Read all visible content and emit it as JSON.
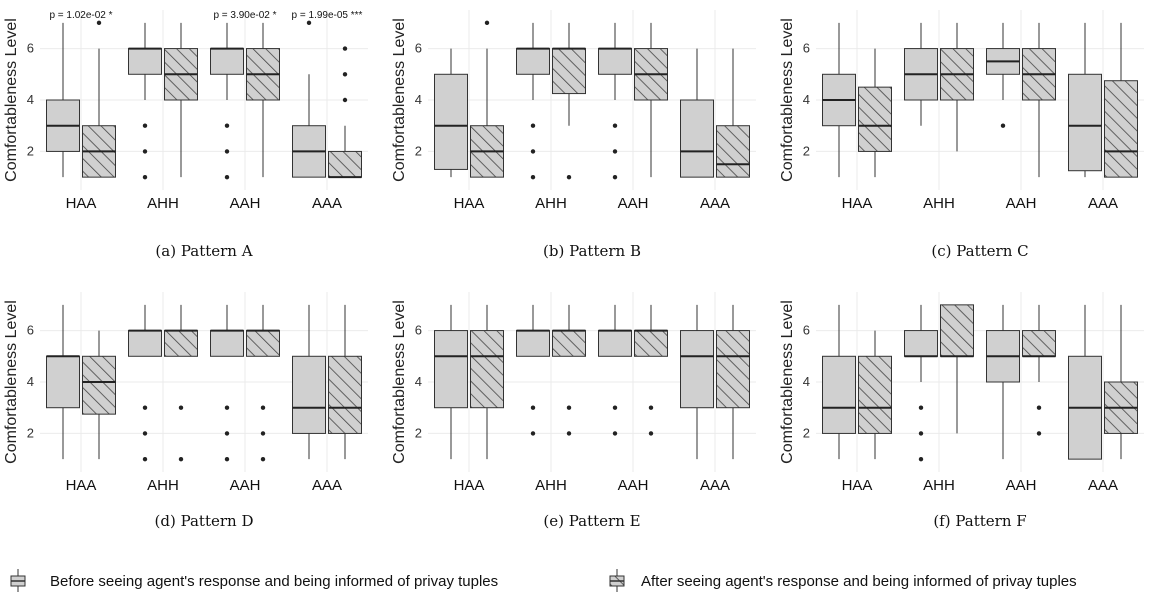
{
  "legend": {
    "before": "Before seeing agent's response and being informed of privay tuples",
    "after": "After seeing agent's response and being informed of privay tuples"
  },
  "colors": {
    "box_fill": "#d0d0d0",
    "stroke": "#333333",
    "grid": "#ebebeb",
    "hatch": "#444444"
  },
  "chart_data": [
    {
      "type": "boxplot",
      "caption": "(a) Pattern A",
      "ylabel": "Comfortableness Level",
      "categories": [
        "HAA",
        "AHH",
        "AAH",
        "AAA"
      ],
      "yticks": [
        2,
        4,
        6
      ],
      "ylim": [
        0.5,
        7.5
      ],
      "annotations": [
        {
          "category": "HAA",
          "text": "p = 1.02e-02 *"
        },
        {
          "category": "AAH",
          "text": "p = 3.90e-02 *"
        },
        {
          "category": "AAA",
          "text": "p = 1.99e-05 ***"
        }
      ],
      "series": [
        {
          "name": "Before",
          "boxes": [
            {
              "min": 1,
              "q1": 2,
              "median": 3,
              "q3": 4,
              "max": 7,
              "outliers": []
            },
            {
              "min": 4,
              "q1": 5,
              "median": 6,
              "q3": 6,
              "max": 7,
              "outliers": [
                1,
                2,
                3
              ]
            },
            {
              "min": 4,
              "q1": 5,
              "median": 6,
              "q3": 6,
              "max": 7,
              "outliers": [
                1,
                2,
                3
              ]
            },
            {
              "min": 1,
              "q1": 1,
              "median": 2,
              "q3": 3,
              "max": 5,
              "outliers": [
                7
              ]
            }
          ]
        },
        {
          "name": "After",
          "boxes": [
            {
              "min": 1,
              "q1": 1,
              "median": 2,
              "q3": 3,
              "max": 6,
              "outliers": [
                7
              ]
            },
            {
              "min": 1,
              "q1": 4,
              "median": 5,
              "q3": 6,
              "max": 7,
              "outliers": []
            },
            {
              "min": 1,
              "q1": 4,
              "median": 5,
              "q3": 6,
              "max": 7,
              "outliers": []
            },
            {
              "min": 1,
              "q1": 1,
              "median": 1,
              "q3": 2,
              "max": 3,
              "outliers": [
                4,
                5,
                6
              ]
            }
          ]
        }
      ]
    },
    {
      "type": "boxplot",
      "caption": "(b) Pattern B",
      "ylabel": "Comfortableness Level",
      "categories": [
        "HAA",
        "AHH",
        "AAH",
        "AAA"
      ],
      "yticks": [
        2,
        4,
        6
      ],
      "ylim": [
        0.5,
        7.5
      ],
      "annotations": [],
      "series": [
        {
          "name": "Before",
          "boxes": [
            {
              "min": 1,
              "q1": 1.3,
              "median": 3,
              "q3": 5,
              "max": 6,
              "outliers": []
            },
            {
              "min": 4,
              "q1": 5,
              "median": 6,
              "q3": 6,
              "max": 7,
              "outliers": [
                1,
                2,
                3
              ]
            },
            {
              "min": 4,
              "q1": 5,
              "median": 6,
              "q3": 6,
              "max": 7,
              "outliers": [
                1,
                2,
                3
              ]
            },
            {
              "min": 1,
              "q1": 1,
              "median": 2,
              "q3": 4,
              "max": 6,
              "outliers": []
            }
          ]
        },
        {
          "name": "After",
          "boxes": [
            {
              "min": 1,
              "q1": 1,
              "median": 2,
              "q3": 3,
              "max": 6,
              "outliers": [
                7
              ]
            },
            {
              "min": 3,
              "q1": 4.25,
              "median": 6,
              "q3": 6,
              "max": 7,
              "outliers": [
                1
              ]
            },
            {
              "min": 1,
              "q1": 4,
              "median": 5,
              "q3": 6,
              "max": 7,
              "outliers": []
            },
            {
              "min": 1,
              "q1": 1,
              "median": 1.5,
              "q3": 3,
              "max": 6,
              "outliers": []
            }
          ]
        }
      ]
    },
    {
      "type": "boxplot",
      "caption": "(c) Pattern C",
      "ylabel": "Comfortableness Level",
      "categories": [
        "HAA",
        "AHH",
        "AAH",
        "AAA"
      ],
      "yticks": [
        2,
        4,
        6
      ],
      "ylim": [
        0.5,
        7.5
      ],
      "annotations": [],
      "series": [
        {
          "name": "Before",
          "boxes": [
            {
              "min": 1,
              "q1": 3,
              "median": 4,
              "q3": 5,
              "max": 7,
              "outliers": []
            },
            {
              "min": 3,
              "q1": 4,
              "median": 5,
              "q3": 6,
              "max": 7,
              "outliers": []
            },
            {
              "min": 4,
              "q1": 5,
              "median": 5.5,
              "q3": 6,
              "max": 7,
              "outliers": [
                3
              ]
            },
            {
              "min": 1,
              "q1": 1.25,
              "median": 3,
              "q3": 5,
              "max": 7,
              "outliers": []
            }
          ]
        },
        {
          "name": "After",
          "boxes": [
            {
              "min": 1,
              "q1": 2,
              "median": 3,
              "q3": 4.5,
              "max": 6,
              "outliers": []
            },
            {
              "min": 2,
              "q1": 4,
              "median": 5,
              "q3": 6,
              "max": 7,
              "outliers": []
            },
            {
              "min": 1,
              "q1": 4,
              "median": 5,
              "q3": 6,
              "max": 7,
              "outliers": []
            },
            {
              "min": 1,
              "q1": 1,
              "median": 2,
              "q3": 4.75,
              "max": 7,
              "outliers": []
            }
          ]
        }
      ]
    },
    {
      "type": "boxplot",
      "caption": "(d) Pattern D",
      "ylabel": "Comfortableness Level",
      "categories": [
        "HAA",
        "AHH",
        "AAH",
        "AAA"
      ],
      "yticks": [
        2,
        4,
        6
      ],
      "ylim": [
        0.5,
        7.5
      ],
      "annotations": [],
      "series": [
        {
          "name": "Before",
          "boxes": [
            {
              "min": 1,
              "q1": 3,
              "median": 5,
              "q3": 5,
              "max": 7,
              "outliers": []
            },
            {
              "min": 5,
              "q1": 5,
              "median": 6,
              "q3": 6,
              "max": 7,
              "outliers": [
                1,
                2,
                3
              ]
            },
            {
              "min": 5,
              "q1": 5,
              "median": 6,
              "q3": 6,
              "max": 7,
              "outliers": [
                1,
                2,
                3
              ]
            },
            {
              "min": 1,
              "q1": 2,
              "median": 3,
              "q3": 5,
              "max": 7,
              "outliers": []
            }
          ]
        },
        {
          "name": "After",
          "boxes": [
            {
              "min": 1,
              "q1": 2.75,
              "median": 4,
              "q3": 5,
              "max": 6,
              "outliers": []
            },
            {
              "min": 5,
              "q1": 5,
              "median": 6,
              "q3": 6,
              "max": 7,
              "outliers": [
                1,
                3
              ]
            },
            {
              "min": 5,
              "q1": 5,
              "median": 6,
              "q3": 6,
              "max": 7,
              "outliers": [
                1,
                2,
                3
              ]
            },
            {
              "min": 1,
              "q1": 2,
              "median": 3,
              "q3": 5,
              "max": 7,
              "outliers": []
            }
          ]
        }
      ]
    },
    {
      "type": "boxplot",
      "caption": "(e) Pattern E",
      "ylabel": "Comfortableness Level",
      "categories": [
        "HAA",
        "AHH",
        "AAH",
        "AAA"
      ],
      "yticks": [
        2,
        4,
        6
      ],
      "ylim": [
        0.5,
        7.5
      ],
      "annotations": [],
      "series": [
        {
          "name": "Before",
          "boxes": [
            {
              "min": 1,
              "q1": 3,
              "median": 5,
              "q3": 6,
              "max": 7,
              "outliers": []
            },
            {
              "min": 5,
              "q1": 5,
              "median": 6,
              "q3": 6,
              "max": 7,
              "outliers": [
                2,
                3
              ]
            },
            {
              "min": 5,
              "q1": 5,
              "median": 6,
              "q3": 6,
              "max": 7,
              "outliers": [
                2,
                3
              ]
            },
            {
              "min": 1,
              "q1": 3,
              "median": 5,
              "q3": 6,
              "max": 7,
              "outliers": []
            }
          ]
        },
        {
          "name": "After",
          "boxes": [
            {
              "min": 1,
              "q1": 3,
              "median": 5,
              "q3": 6,
              "max": 7,
              "outliers": []
            },
            {
              "min": 5,
              "q1": 5,
              "median": 6,
              "q3": 6,
              "max": 7,
              "outliers": [
                2,
                3
              ]
            },
            {
              "min": 5,
              "q1": 5,
              "median": 6,
              "q3": 6,
              "max": 7,
              "outliers": [
                2,
                3
              ]
            },
            {
              "min": 1,
              "q1": 3,
              "median": 5,
              "q3": 6,
              "max": 7,
              "outliers": []
            }
          ]
        }
      ]
    },
    {
      "type": "boxplot",
      "caption": "(f) Pattern F",
      "ylabel": "Comfortableness Level",
      "categories": [
        "HAA",
        "AHH",
        "AAH",
        "AAA"
      ],
      "yticks": [
        2,
        4,
        6
      ],
      "ylim": [
        0.5,
        7.5
      ],
      "annotations": [],
      "series": [
        {
          "name": "Before",
          "boxes": [
            {
              "min": 1,
              "q1": 2,
              "median": 3,
              "q3": 5,
              "max": 7,
              "outliers": []
            },
            {
              "min": 4,
              "q1": 5,
              "median": 5,
              "q3": 6,
              "max": 7,
              "outliers": [
                1,
                2,
                3
              ]
            },
            {
              "min": 1,
              "q1": 4,
              "median": 5,
              "q3": 6,
              "max": 7,
              "outliers": []
            },
            {
              "min": 1,
              "q1": 1,
              "median": 3,
              "q3": 5,
              "max": 7,
              "outliers": []
            }
          ]
        },
        {
          "name": "After",
          "boxes": [
            {
              "min": 1,
              "q1": 2,
              "median": 3,
              "q3": 5,
              "max": 6,
              "outliers": []
            },
            {
              "min": 2,
              "q1": 5,
              "median": 5,
              "q3": 7,
              "max": 7,
              "outliers": []
            },
            {
              "min": 4,
              "q1": 5,
              "median": 5,
              "q3": 6,
              "max": 7,
              "outliers": [
                2,
                3
              ]
            },
            {
              "min": 1,
              "q1": 2,
              "median": 3,
              "q3": 4,
              "max": 7,
              "outliers": []
            }
          ]
        }
      ]
    }
  ]
}
